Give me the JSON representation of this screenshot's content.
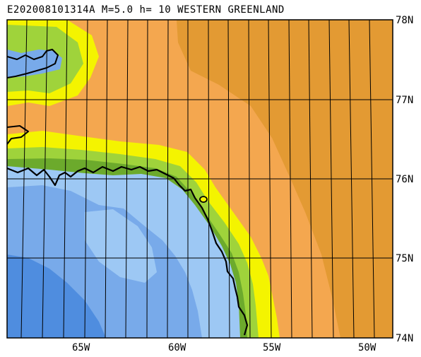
{
  "header": {
    "title": "E202008101314A M=5.0 h= 10 WESTERN GREENLAND"
  },
  "map": {
    "lat_labels": [
      "78N",
      "77N",
      "76N",
      "75N",
      "74N"
    ],
    "lon_labels": [
      "65W",
      "60W",
      "55W",
      "50W"
    ],
    "colors": {
      "land_orange": "#f4a74f",
      "land_dark": "#e39a33",
      "coast_yellow": "#f4f400",
      "coast_green": "#9fd33b",
      "coast_darkgreen": "#6caa2c",
      "ocean_light": "#9dc8f4",
      "ocean_mid": "#78aaea",
      "ocean_deep": "#4f8ddf",
      "grid": "#000000",
      "coastline": "#000000"
    }
  }
}
